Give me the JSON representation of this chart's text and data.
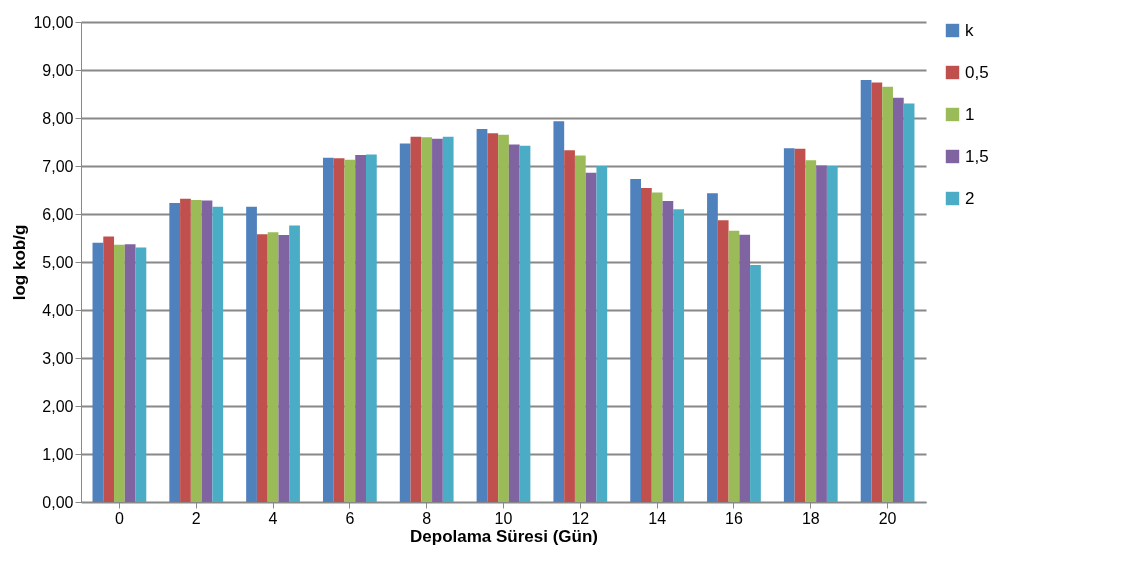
{
  "chart_data": {
    "type": "bar",
    "xlabel": "Depolama Süresi (Gün)",
    "ylabel": "log kob/g",
    "categories": [
      "0",
      "2",
      "4",
      "6",
      "8",
      "10",
      "12",
      "14",
      "16",
      "18",
      "20"
    ],
    "series": [
      {
        "name": "k",
        "color": "#4f81bd",
        "values": [
          5.4,
          6.23,
          6.15,
          7.17,
          7.47,
          7.77,
          7.93,
          6.73,
          6.43,
          7.37,
          8.79
        ]
      },
      {
        "name": "0,5",
        "color": "#c0504d",
        "values": [
          5.53,
          6.32,
          5.58,
          7.16,
          7.61,
          7.68,
          7.33,
          6.54,
          5.87,
          7.36,
          8.74
        ]
      },
      {
        "name": "1",
        "color": "#9bbb59",
        "values": [
          5.36,
          6.29,
          5.62,
          7.13,
          7.6,
          7.65,
          7.22,
          6.45,
          5.65,
          7.12,
          8.65
        ]
      },
      {
        "name": "1,5",
        "color": "#8064a2",
        "values": [
          5.37,
          6.28,
          5.56,
          7.23,
          7.57,
          7.45,
          6.86,
          6.27,
          5.57,
          7.01,
          8.42
        ]
      },
      {
        "name": "2",
        "color": "#4bacc6",
        "values": [
          5.3,
          6.15,
          5.76,
          7.24,
          7.61,
          7.42,
          7.0,
          6.1,
          4.94,
          7.0,
          8.3
        ]
      }
    ],
    "ylim": [
      0,
      10
    ],
    "yticks": [
      {
        "value": 0,
        "label": "0,00"
      },
      {
        "value": 1,
        "label": "1,00"
      },
      {
        "value": 2,
        "label": "2,00"
      },
      {
        "value": 3,
        "label": "3,00"
      },
      {
        "value": 4,
        "label": "4,00"
      },
      {
        "value": 5,
        "label": "5,00"
      },
      {
        "value": 6,
        "label": "6,00"
      },
      {
        "value": 7,
        "label": "7,00"
      },
      {
        "value": 8,
        "label": "8,00"
      },
      {
        "value": 9,
        "label": "9,00"
      },
      {
        "value": 10,
        "label": "10,00"
      }
    ],
    "grid": "y",
    "legend": "right"
  }
}
